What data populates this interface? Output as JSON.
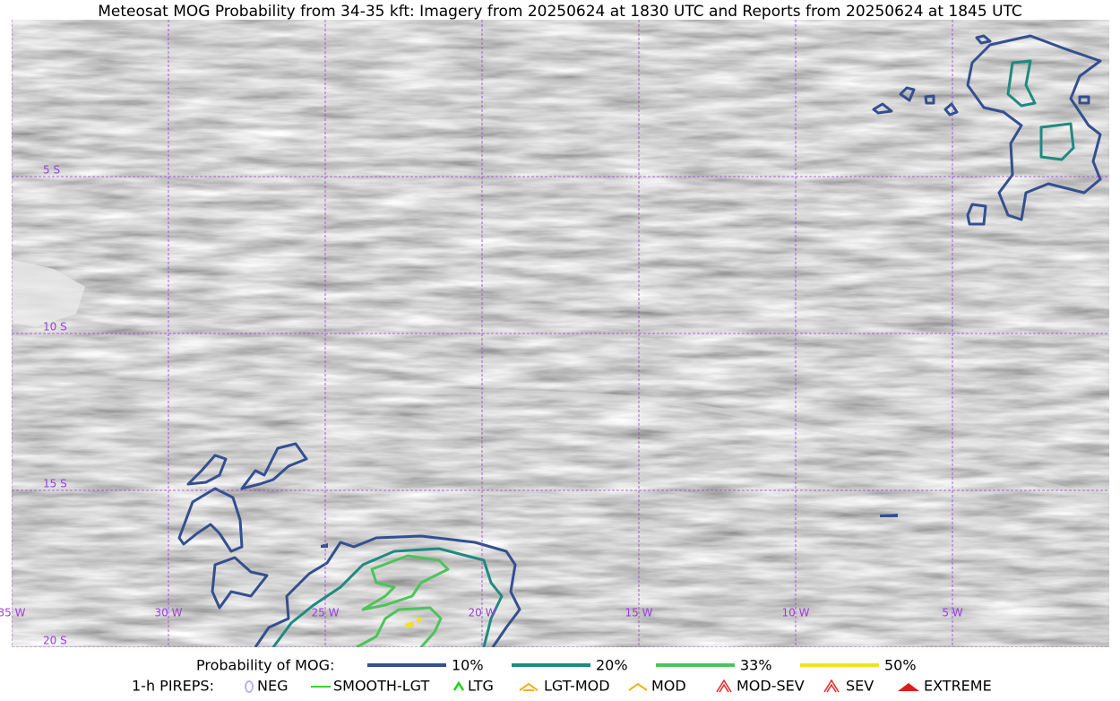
{
  "header": {
    "title": "Meteosat MOG Probability from 34-35 kft: Imagery from 20250624 at 1830 UTC and Reports from 20250624 at 1845 UTC"
  },
  "map": {
    "lat_labels": [
      "5 S",
      "10 S",
      "15 S",
      "20 S"
    ],
    "lon_labels": [
      "35 W",
      "30 W",
      "25 W",
      "20 W",
      "15 W",
      "10 W",
      "5 W"
    ],
    "grid_color": "#9b3fd6"
  },
  "legend": {
    "probability": {
      "label": "Probability of MOG:",
      "levels": [
        {
          "label": "10%",
          "color": "#33508f"
        },
        {
          "label": "20%",
          "color": "#1f8a80"
        },
        {
          "label": "33%",
          "color": "#4cc45a"
        },
        {
          "label": "50%",
          "color": "#f2e21a"
        }
      ]
    },
    "pireps": {
      "label": "1-h PIREPS:",
      "items": [
        {
          "label": "NEG",
          "color": "#b9b5ee"
        },
        {
          "label": "SMOOTH-LGT",
          "color": "#39d639"
        },
        {
          "label": "LTG",
          "color": "#16d416"
        },
        {
          "label": "LGT-MOD",
          "color": "#f2b01c"
        },
        {
          "label": "MOD",
          "color": "#f2b01c"
        },
        {
          "label": "MOD-SEV",
          "color": "#e02828"
        },
        {
          "label": "SEV",
          "color": "#e02828"
        },
        {
          "label": "EXTREME",
          "color": "#e01a1a"
        }
      ]
    }
  }
}
